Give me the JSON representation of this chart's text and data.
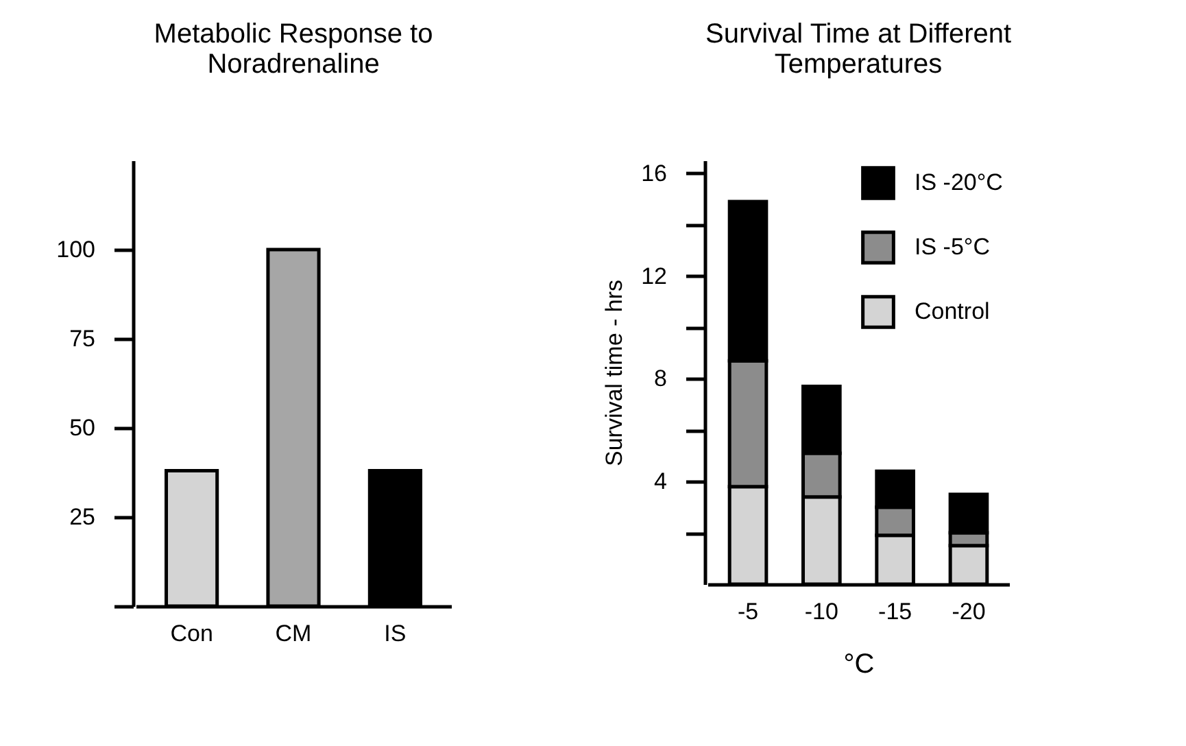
{
  "chart_data": [
    {
      "type": "bar",
      "title": "Metabolic Response to Noradrenaline",
      "categories": [
        "Con",
        "CM",
        "IS"
      ],
      "values": [
        38,
        100,
        38
      ],
      "colors": [
        "#d4d4d4",
        "#a6a6a6",
        "#000000"
      ],
      "ylim": [
        0,
        125
      ],
      "yticks": [
        {
          "value": 0,
          "label": null
        },
        25,
        50,
        75,
        100
      ]
    },
    {
      "type": "bar",
      "title": "Survival Time at Different Temperatures",
      "xlabel": "°C",
      "ylabel": "Survival time - hrs",
      "categories": [
        "-5",
        "-10",
        "-15",
        "-20"
      ],
      "stacked": true,
      "series": [
        {
          "name": "Control",
          "color": "#d4d4d4",
          "values": [
            3.8,
            3.4,
            1.9,
            1.5
          ]
        },
        {
          "name": "IS -5°C",
          "color": "#8c8c8c",
          "values": [
            4.9,
            1.7,
            1.1,
            0.5
          ]
        },
        {
          "name": "IS -20°C",
          "color": "#000000",
          "values": [
            6.2,
            2.6,
            1.4,
            1.5
          ]
        }
      ],
      "ylim": [
        0,
        16.5
      ],
      "yticks": [
        {
          "value": 2,
          "label": null
        },
        4,
        {
          "value": 6,
          "label": null
        },
        8,
        {
          "value": 10,
          "label": null
        },
        12,
        {
          "value": 14,
          "label": null
        },
        16
      ],
      "legend": "top right"
    }
  ]
}
